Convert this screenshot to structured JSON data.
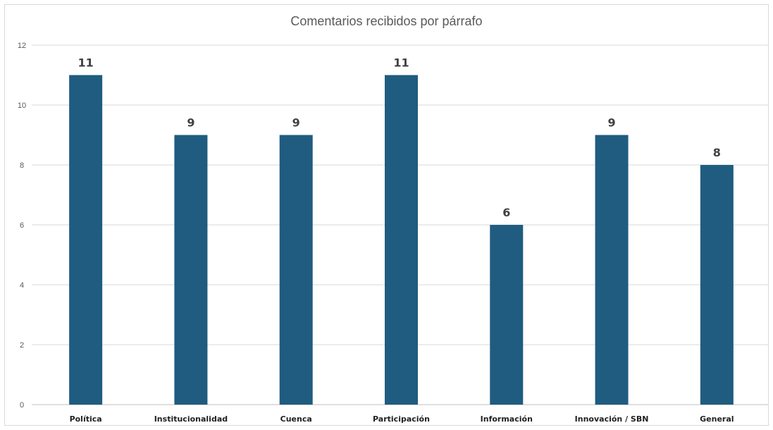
{
  "chart_data": {
    "type": "bar",
    "title": "Comentarios recibidos por párrafo",
    "xlabel": "",
    "ylabel": "",
    "categories": [
      "Política",
      "Institucionalidad",
      "Cuenca",
      "Participación",
      "Información",
      "Innovación / SBN",
      "General"
    ],
    "values": [
      11,
      9,
      9,
      11,
      6,
      9,
      8
    ],
    "ylim": [
      0,
      12
    ],
    "yticks": [
      0,
      2,
      4,
      6,
      8,
      10,
      12
    ],
    "grid": true,
    "legend": "none",
    "colors": {
      "bar": "#1f5c80",
      "grid": "#d9d9d9",
      "axis": "#bfbfbf"
    }
  }
}
